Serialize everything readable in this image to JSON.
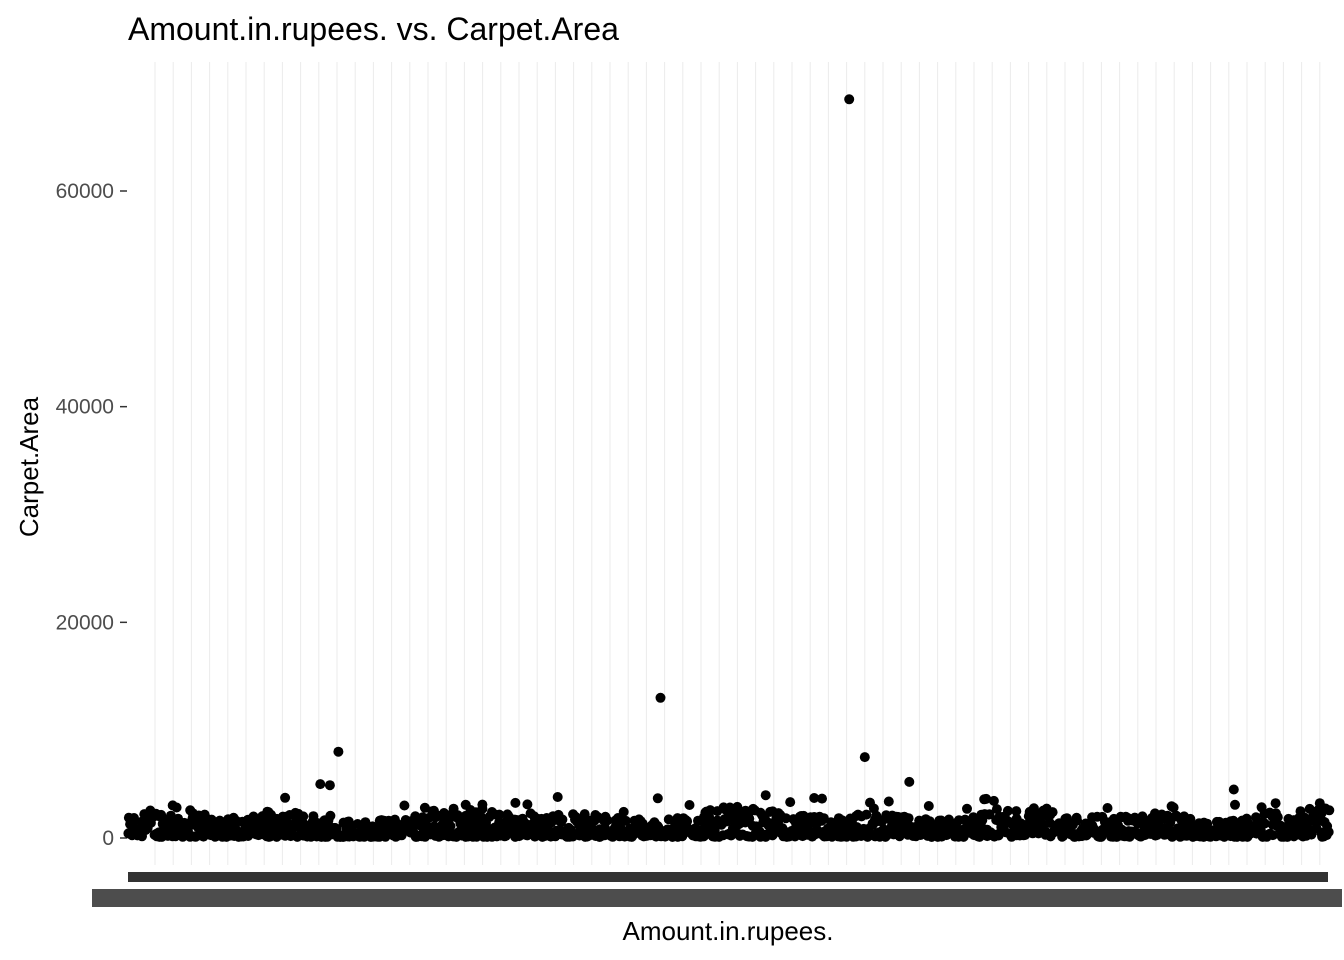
{
  "chart_data": {
    "type": "scatter",
    "title": "Amount.in.rupees. vs. Carpet.Area",
    "xlabel": "Amount.in.rupees.",
    "ylabel": "Carpet.Area",
    "x_axis": "categorical (many overlapping tick labels)",
    "ylim": [
      -3000,
      72000
    ],
    "y_ticks": [
      0,
      20000,
      40000,
      60000
    ],
    "y_tick_labels": [
      "0",
      "20000",
      "40000",
      "60000"
    ],
    "grid": "vertical major lines",
    "legend": "none",
    "notable_points": [
      {
        "x_pos": 0.6,
        "y": 68500
      },
      {
        "x_pos": 0.443,
        "y": 13000
      },
      {
        "x_pos": 0.613,
        "y": 7500
      },
      {
        "x_pos": 0.175,
        "y": 8000
      },
      {
        "x_pos": 0.65,
        "y": 5200
      },
      {
        "x_pos": 0.16,
        "y": 5000
      },
      {
        "x_pos": 0.168,
        "y": 4900
      },
      {
        "x_pos": 0.92,
        "y": 4500
      }
    ],
    "bulk_band": {
      "y_min": 100,
      "y_max": 4000,
      "typical": 1000
    }
  }
}
